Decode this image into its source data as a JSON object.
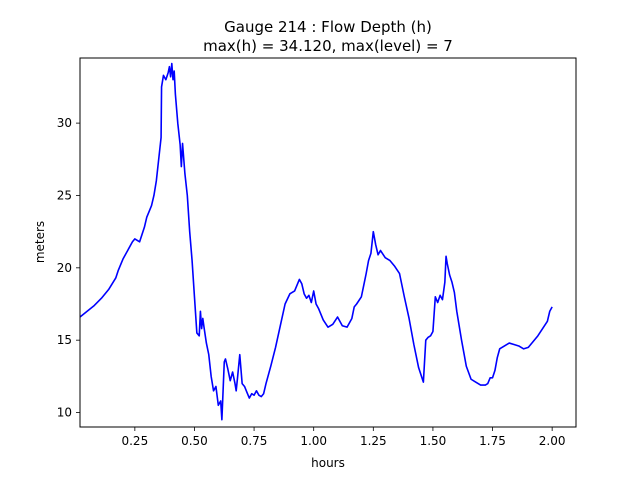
{
  "chart_data": {
    "type": "line",
    "title_line1": "Gauge 214 : Flow Depth (h)",
    "title_line2": "max(h) =  34.120,    max(level) = 7",
    "xlabel": "hours",
    "ylabel": "meters",
    "xlim": [
      0.02,
      2.1
    ],
    "ylim": [
      9.0,
      34.5
    ],
    "xticks": [
      0.25,
      0.5,
      0.75,
      1.0,
      1.25,
      1.5,
      1.75,
      2.0
    ],
    "xtick_labels": [
      "0.25",
      "0.50",
      "0.75",
      "1.00",
      "1.25",
      "1.50",
      "1.75",
      "2.00"
    ],
    "yticks": [
      10,
      15,
      20,
      25,
      30
    ],
    "ytick_labels": [
      "10",
      "15",
      "20",
      "25",
      "30"
    ],
    "grid": false,
    "line_color": "#0000ff",
    "series": [
      {
        "name": "",
        "x": [
          0.02,
          0.05,
          0.08,
          0.11,
          0.14,
          0.17,
          0.18,
          0.2,
          0.22,
          0.24,
          0.25,
          0.27,
          0.28,
          0.29,
          0.3,
          0.31,
          0.32,
          0.33,
          0.34,
          0.35,
          0.36,
          0.362,
          0.37,
          0.38,
          0.39,
          0.395,
          0.4,
          0.405,
          0.41,
          0.415,
          0.42,
          0.43,
          0.44,
          0.445,
          0.45,
          0.46,
          0.47,
          0.48,
          0.49,
          0.5,
          0.51,
          0.52,
          0.525,
          0.53,
          0.535,
          0.54,
          0.55,
          0.56,
          0.57,
          0.58,
          0.59,
          0.6,
          0.61,
          0.615,
          0.62,
          0.625,
          0.63,
          0.64,
          0.65,
          0.66,
          0.67,
          0.675,
          0.68,
          0.69,
          0.7,
          0.71,
          0.72,
          0.73,
          0.74,
          0.75,
          0.76,
          0.77,
          0.78,
          0.79,
          0.8,
          0.82,
          0.84,
          0.86,
          0.88,
          0.9,
          0.92,
          0.94,
          0.95,
          0.96,
          0.97,
          0.98,
          0.99,
          1.0,
          1.01,
          1.02,
          1.04,
          1.06,
          1.08,
          1.1,
          1.12,
          1.14,
          1.16,
          1.17,
          1.18,
          1.2,
          1.21,
          1.22,
          1.23,
          1.24,
          1.25,
          1.26,
          1.27,
          1.28,
          1.3,
          1.32,
          1.34,
          1.36,
          1.38,
          1.4,
          1.42,
          1.44,
          1.46,
          1.47,
          1.48,
          1.49,
          1.5,
          1.51,
          1.52,
          1.53,
          1.54,
          1.55,
          1.555,
          1.56,
          1.57,
          1.58,
          1.59,
          1.6,
          1.62,
          1.64,
          1.66,
          1.68,
          1.7,
          1.72,
          1.73,
          1.74,
          1.75,
          1.76,
          1.77,
          1.78,
          1.8,
          1.82,
          1.84,
          1.86,
          1.88,
          1.9,
          1.92,
          1.94,
          1.96,
          1.98,
          1.99,
          2.0
        ],
        "y": [
          16.6,
          17.0,
          17.4,
          17.9,
          18.5,
          19.3,
          19.8,
          20.6,
          21.2,
          21.8,
          22.0,
          21.8,
          22.3,
          22.8,
          23.5,
          23.9,
          24.3,
          25.0,
          26.0,
          27.5,
          29.0,
          32.5,
          33.3,
          33.0,
          33.5,
          33.9,
          33.2,
          34.12,
          33.0,
          33.6,
          32.0,
          30.0,
          28.5,
          27.0,
          28.6,
          26.5,
          25.0,
          22.5,
          20.5,
          18.0,
          15.5,
          15.3,
          17.0,
          15.8,
          16.5,
          15.9,
          14.8,
          14.0,
          12.5,
          11.5,
          11.8,
          10.5,
          10.8,
          9.5,
          11.5,
          13.5,
          13.7,
          13.0,
          12.2,
          12.8,
          12.0,
          11.5,
          12.3,
          14.0,
          12.0,
          11.8,
          11.4,
          11.0,
          11.3,
          11.2,
          11.5,
          11.2,
          11.1,
          11.3,
          12.0,
          13.2,
          14.5,
          16.0,
          17.5,
          18.2,
          18.4,
          19.2,
          18.9,
          18.2,
          17.9,
          18.1,
          17.6,
          18.4,
          17.5,
          17.2,
          16.4,
          15.9,
          16.1,
          16.6,
          16.0,
          15.9,
          16.5,
          17.3,
          17.5,
          18.0,
          18.8,
          19.6,
          20.5,
          21.0,
          22.5,
          21.6,
          20.9,
          21.2,
          20.7,
          20.5,
          20.1,
          19.6,
          18.0,
          16.5,
          14.7,
          13.1,
          12.1,
          15.0,
          15.2,
          15.3,
          15.6,
          18.0,
          17.6,
          18.1,
          17.8,
          19.0,
          20.8,
          20.3,
          19.5,
          19.0,
          18.3,
          17.0,
          15.0,
          13.2,
          12.3,
          12.1,
          11.9,
          11.9,
          12.0,
          12.4,
          12.4,
          12.9,
          13.8,
          14.4,
          14.6,
          14.8,
          14.7,
          14.6,
          14.4,
          14.5,
          14.9,
          15.3,
          15.8,
          16.3,
          17.0,
          17.3
        ]
      }
    ]
  }
}
